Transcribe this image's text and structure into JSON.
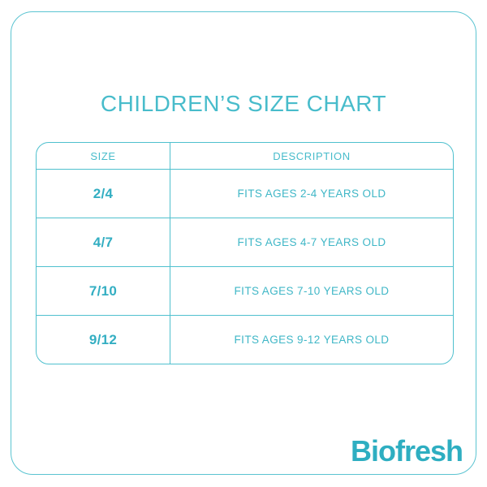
{
  "chart_data": {
    "type": "table",
    "title": "CHILDREN’S SIZE CHART",
    "columns": [
      "SIZE",
      "DESCRIPTION"
    ],
    "rows": [
      [
        "2/4",
        "FITS AGES 2-4 YEARS OLD"
      ],
      [
        "4/7",
        "FITS AGES 4-7 YEARS OLD"
      ],
      [
        "7/10",
        "FITS AGES 7-10 YEARS OLD"
      ],
      [
        "9/12",
        "FITS AGES 9-12 YEARS OLD"
      ]
    ]
  },
  "brand": {
    "logo_text": "Biofresh"
  },
  "colors": {
    "accent": "#48bccb",
    "line": "#4fc0ce",
    "frame": "#5bc4d1",
    "bold-text": "#33aec2",
    "desc-text": "#40b7c7",
    "logo": "#2eaec1"
  }
}
